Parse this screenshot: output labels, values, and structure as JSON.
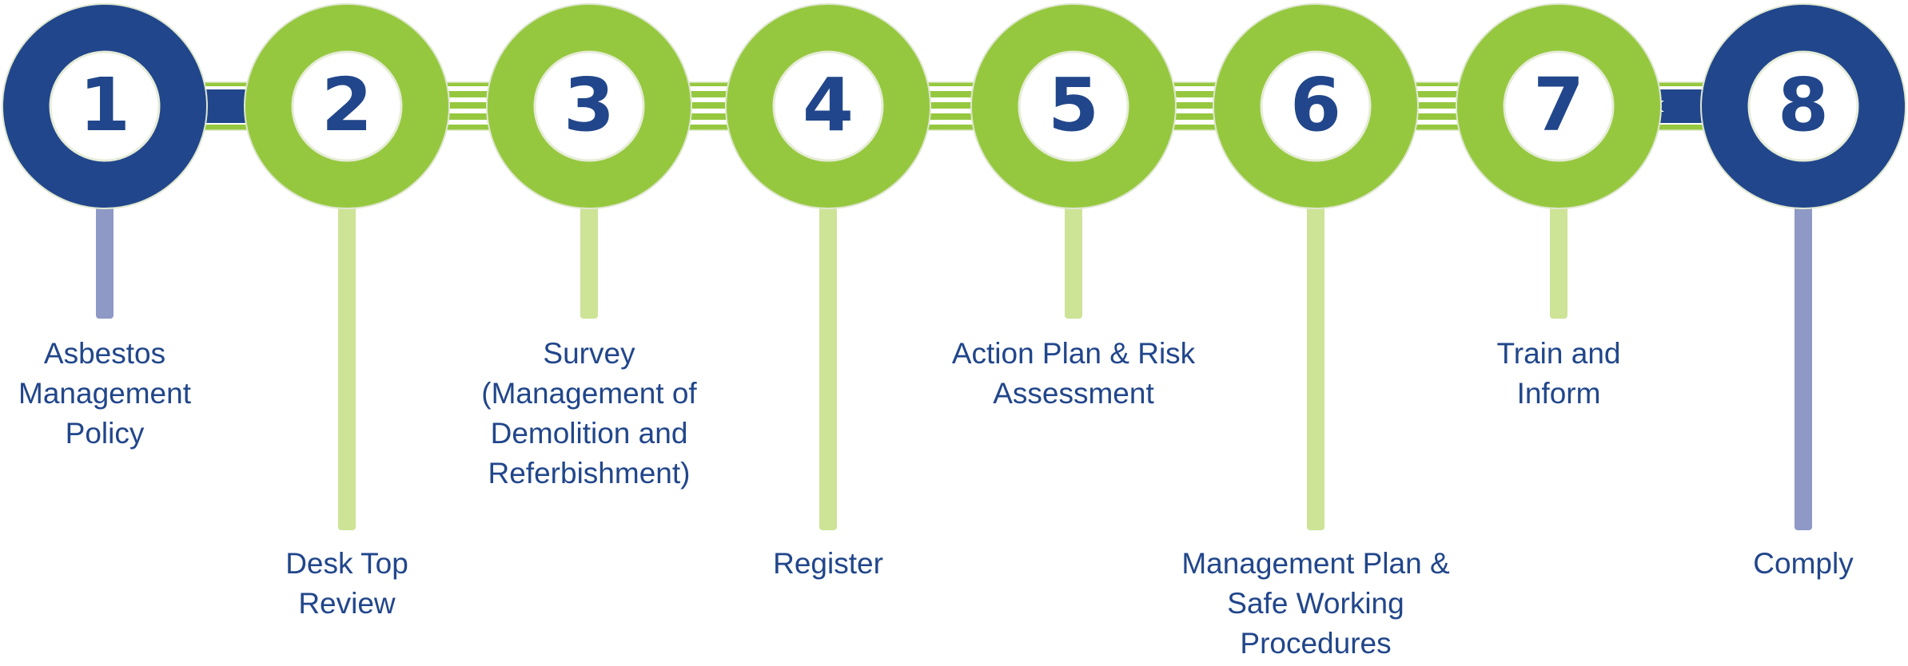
{
  "colors": {
    "navy": "#21468b",
    "green": "#96c83f",
    "navy_stem": "#8e99c6",
    "green_stem": "#cde396",
    "text": "#21468b",
    "band_stroke": "#d9e6bf"
  },
  "steps": [
    {
      "number": "1",
      "lines": [
        "Asbestos",
        "Management",
        "Policy"
      ],
      "color": "navy",
      "stem": "short"
    },
    {
      "number": "2",
      "lines": [
        "Desk Top",
        "Review"
      ],
      "color": "green",
      "stem": "long"
    },
    {
      "number": "3",
      "lines": [
        "Survey",
        "(Management of",
        "Demolition and",
        "Referbishment)"
      ],
      "color": "green",
      "stem": "short"
    },
    {
      "number": "4",
      "lines": [
        "Register"
      ],
      "color": "green",
      "stem": "long"
    },
    {
      "number": "5",
      "lines": [
        "Action Plan & Risk",
        "Assessment"
      ],
      "color": "green",
      "stem": "short"
    },
    {
      "number": "6",
      "lines": [
        "Management Plan &",
        "Safe Working",
        "Procedures"
      ],
      "color": "green",
      "stem": "long"
    },
    {
      "number": "7",
      "lines": [
        "Train and",
        "Inform"
      ],
      "color": "green",
      "stem": "short"
    },
    {
      "number": "8",
      "lines": [
        "Comply"
      ],
      "color": "navy",
      "stem": "long"
    }
  ]
}
